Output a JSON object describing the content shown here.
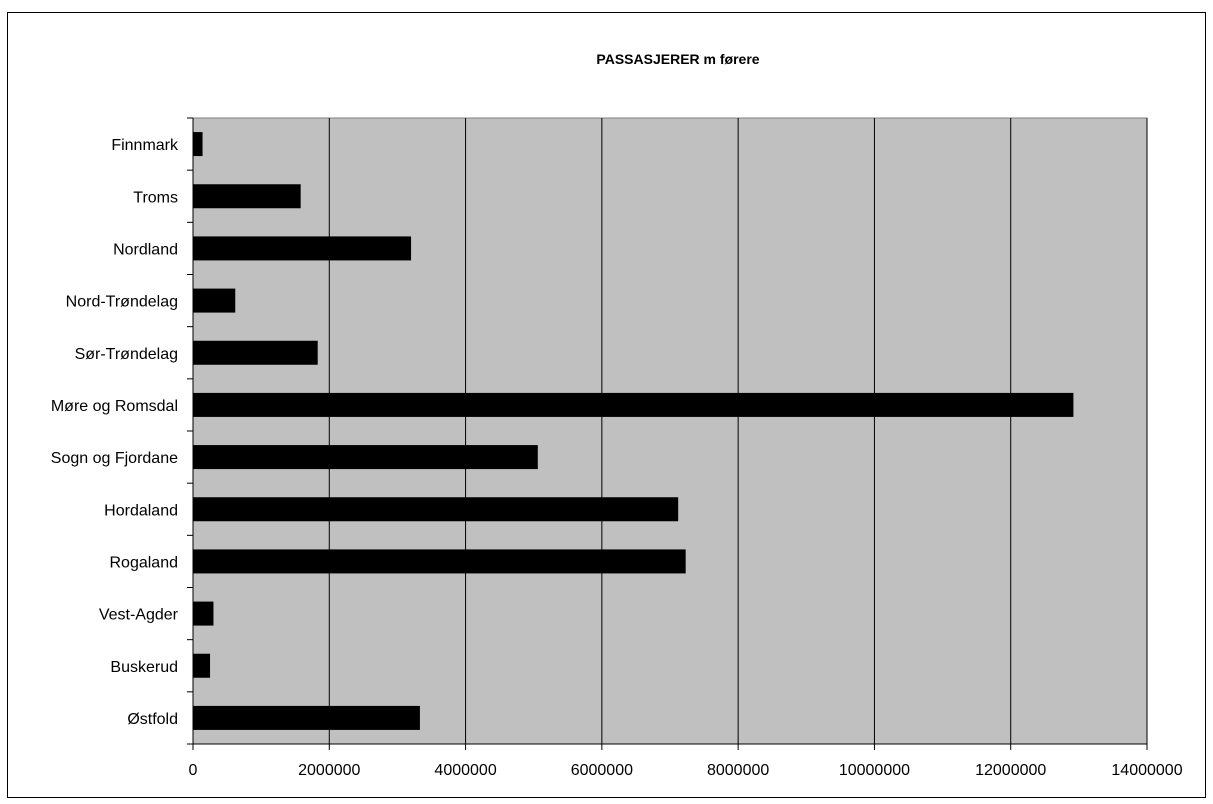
{
  "chart_data": {
    "type": "bar",
    "orientation": "horizontal",
    "title": "PASSASJERER  m førere",
    "categories": [
      "Finnmark",
      "Troms",
      "Nordland",
      "Nord-Trøndelag",
      "Sør-Trøndelag",
      "Møre og Romsdal",
      "Sogn og Fjordane",
      "Hordaland",
      "Rogaland",
      "Vest-Agder",
      "Buskerud",
      "Østfold"
    ],
    "values": [
      140000,
      1580000,
      3200000,
      620000,
      1830000,
      12920000,
      5060000,
      7120000,
      7230000,
      300000,
      250000,
      3330000
    ],
    "xlim": [
      0,
      14000000
    ],
    "xticks": [
      "0",
      "2000000",
      "4000000",
      "6000000",
      "8000000",
      "10000000",
      "12000000",
      "14000000"
    ],
    "grid": "vertical",
    "legend": "none",
    "colors": {
      "plot_bg": "#c0c0c0",
      "bar": "#000000",
      "grid": "#000000"
    }
  }
}
